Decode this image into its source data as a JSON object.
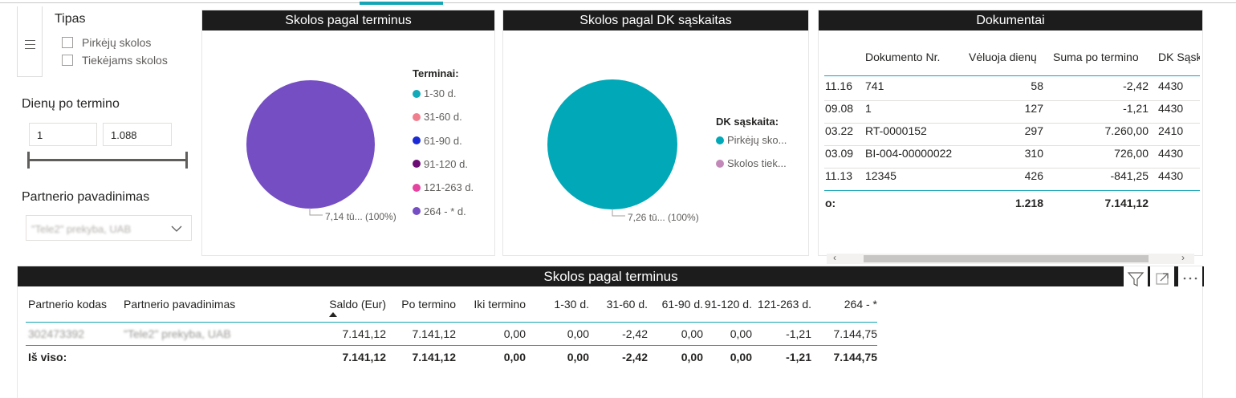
{
  "slicer_tipas": {
    "title": "Tipas",
    "options": [
      "Pirkėjų skolos",
      "Tiekėjams skolos"
    ]
  },
  "slicer_dienu": {
    "title": "Dienų po termino",
    "min_value": "1",
    "max_value": "1.088"
  },
  "slicer_partner": {
    "title": "Partnerio pavadinimas",
    "selected": "\"Tele2\" prekyba, UAB"
  },
  "pie_terminai": {
    "title": "Skolos pagal terminus",
    "legend_title": "Terminai:",
    "data_label": "7,14 tū... (100%)"
  },
  "pie_dk": {
    "title": "Skolos pagal DK sąskaitas",
    "legend_title": "DK sąskaita:",
    "data_label": "7,26 tū... (100%)"
  },
  "chart_data": [
    {
      "type": "pie",
      "title": "Skolos pagal terminus",
      "legend_title": "Terminai:",
      "categories": [
        "1-30 d.",
        "31-60 d.",
        "61-90 d.",
        "91-120 d.",
        "121-263 d.",
        "264 - * d."
      ],
      "colors": [
        "#12a9b8",
        "#f07f8e",
        "#1a2bd6",
        "#6b0d74",
        "#e444a0",
        "#744ec2"
      ],
      "values_percent": [
        0,
        0,
        0,
        0,
        0,
        100
      ],
      "data_labels": [
        "7,14 tū... (100%)"
      ]
    },
    {
      "type": "pie",
      "title": "Skolos pagal DK sąskaitas",
      "legend_title": "DK sąskaita:",
      "categories": [
        "Pirkėjų sko...",
        "Skolos tiek..."
      ],
      "colors": [
        "#01a8b8",
        "#c289b8"
      ],
      "values_percent": [
        100,
        0
      ],
      "data_labels": [
        "7,26 tū... (100%)"
      ]
    }
  ],
  "documents": {
    "title": "Dokumentai",
    "columns": [
      "Dokumento Nr.",
      "Vėluoja dienų",
      "Suma po termino",
      "DK Sąsk"
    ],
    "rows": [
      {
        "date": "11.16",
        "doc": "741",
        "days": "58",
        "sum": "-2,42",
        "dk": "4430"
      },
      {
        "date": "09.08",
        "doc": "1",
        "days": "127",
        "sum": "-1,21",
        "dk": "4430"
      },
      {
        "date": "03.22",
        "doc": "RT-0000152",
        "days": "297",
        "sum": "7.260,00",
        "dk": "2410"
      },
      {
        "date": "03.09",
        "doc": "BI-004-00000022",
        "days": "310",
        "sum": "726,00",
        "dk": "4430"
      },
      {
        "date": "11.13",
        "doc": "12345",
        "days": "426",
        "sum": "-841,25",
        "dk": "4430"
      }
    ],
    "total": {
      "label": "o:",
      "days": "1.218",
      "sum": "7.141,12"
    }
  },
  "matrix": {
    "title": "Skolos pagal terminus",
    "columns": [
      "Partnerio kodas",
      "Partnerio pavadinimas",
      "Saldo (Eur)",
      "Po termino",
      "Iki termino",
      "1-30 d.",
      "31-60 d.",
      "61-90 d.",
      "91-120 d.",
      "121-263 d.",
      "264 - *"
    ],
    "row": [
      "302473392",
      "\"Tele2\" prekyba, UAB",
      "7.141,12",
      "7.141,12",
      "0,00",
      "0,00",
      "-2,42",
      "0,00",
      "0,00",
      "-1,21",
      "7.144,75"
    ],
    "total": [
      "Iš viso:",
      "",
      "7.141,12",
      "7.141,12",
      "0,00",
      "0,00",
      "-2,42",
      "0,00",
      "0,00",
      "-1,21",
      "7.144,75"
    ]
  },
  "colors": {
    "header_bg": "#1c1c1c",
    "accent": "#13a5b5",
    "table_line": "#13a5b5"
  }
}
